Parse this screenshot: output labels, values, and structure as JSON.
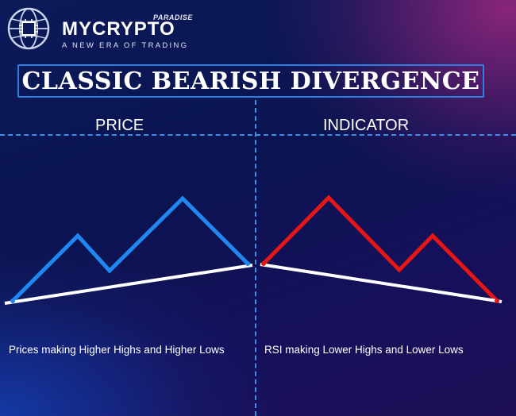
{
  "brand": {
    "name_part1": "MY",
    "name_part2": "CRYPTO",
    "paradise": "PARADISE",
    "tagline": "A NEW ERA OF TRADING"
  },
  "title": "CLASSIC BEARISH DIVERGENCE",
  "left_panel": {
    "heading": "PRICE",
    "caption": "Prices making Higher Highs and Higher Lows"
  },
  "right_panel": {
    "heading": "INDICATOR",
    "caption": "RSI making Lower Highs and Lower Lows"
  },
  "colors": {
    "price_line": "#1e88f0",
    "indicator_line": "#e51616",
    "trend_line": "#ffffff",
    "divider": "#3a8fe8"
  }
}
